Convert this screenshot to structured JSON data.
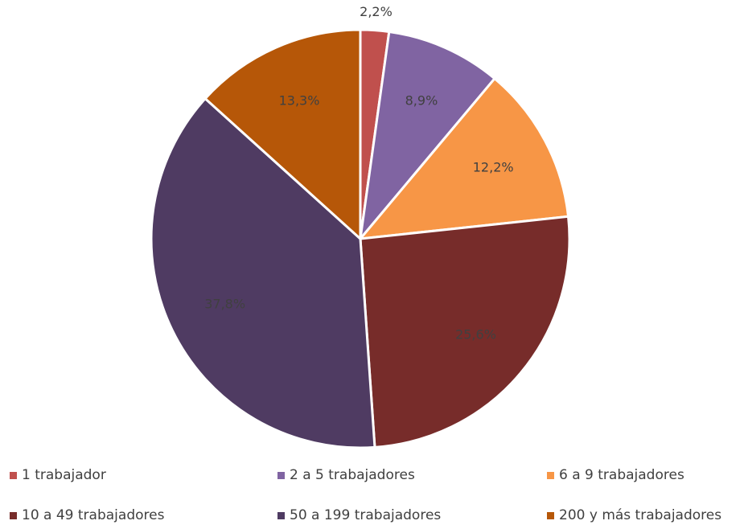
{
  "chart_data": {
    "type": "pie",
    "categories": [
      "1 trabajador",
      "2 a 5 trabajadores",
      "6 a 9 trabajadores",
      "10 a 49 trabajadores",
      "50 a 199 trabajadores",
      "200 y más trabajadores"
    ],
    "values": [
      2.2,
      8.9,
      12.2,
      25.6,
      37.8,
      13.3
    ],
    "value_labels": [
      "2,2%",
      "8,9%",
      "12,2%",
      "25,6%",
      "37,8%",
      "13,3%"
    ],
    "colors": [
      "#c0504d",
      "#8064a2",
      "#f79646",
      "#772c2a",
      "#4f3b62",
      "#b65708"
    ],
    "legend": "bottom"
  }
}
